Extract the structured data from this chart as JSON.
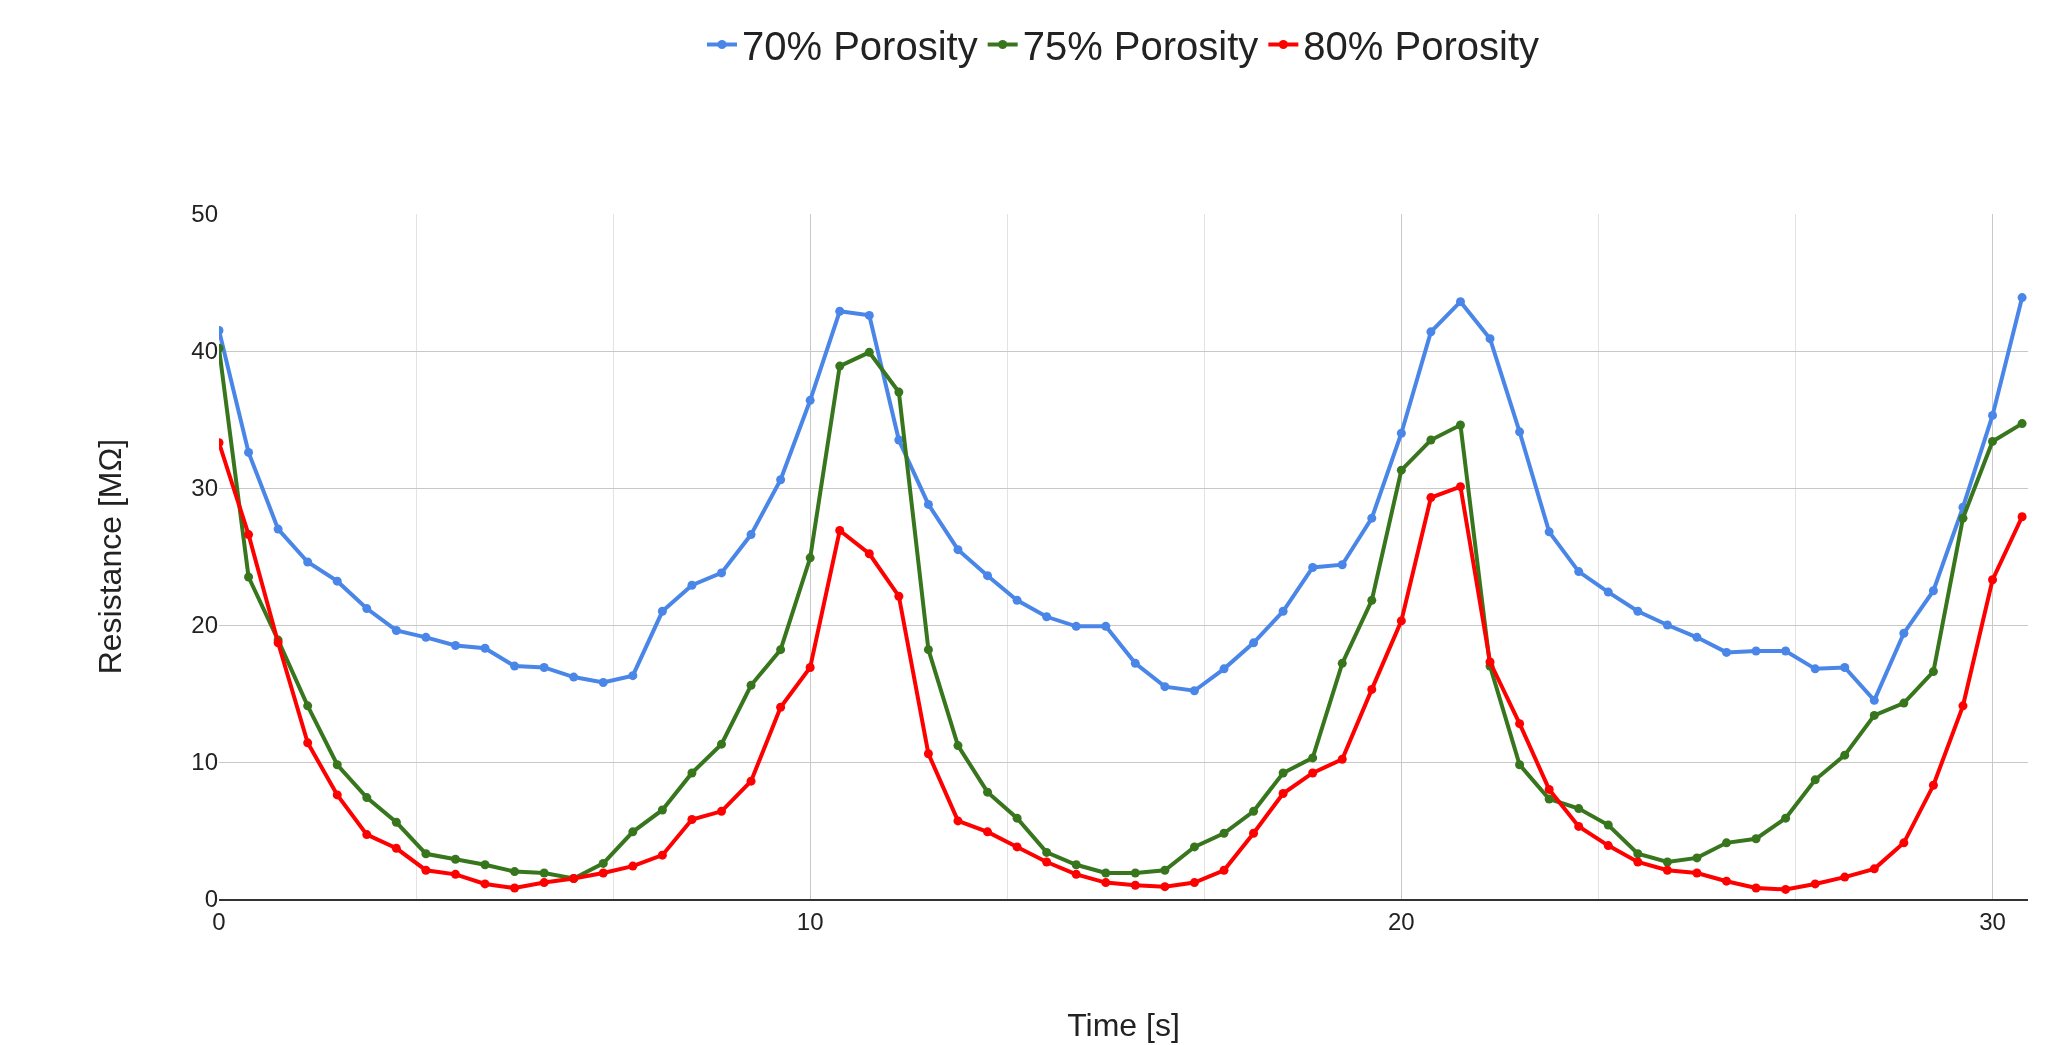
{
  "chart_data": {
    "type": "line",
    "xlabel": "Time [s]",
    "ylabel": "Resistance [MΩ]",
    "x": [
      0,
      0.5,
      1,
      1.5,
      2,
      2.5,
      3,
      3.5,
      4,
      4.5,
      5,
      5.5,
      6,
      6.5,
      7,
      7.5,
      8,
      8.5,
      9,
      9.5,
      10,
      10.5,
      11,
      11.5,
      12,
      12.5,
      13,
      13.5,
      14,
      14.5,
      15,
      15.5,
      16,
      16.5,
      17,
      17.5,
      18,
      18.5,
      19,
      19.5,
      20,
      20.5,
      21,
      21.5,
      22,
      22.5,
      23,
      23.5,
      24,
      24.5,
      25,
      25.5,
      26,
      26.5,
      27,
      27.5,
      28,
      28.5,
      29,
      29.5,
      30,
      30.5
    ],
    "series": [
      {
        "name": "70% Porosity",
        "color": "#4a86e8",
        "values": [
          41.5,
          32.6,
          27,
          24.6,
          23.2,
          21.2,
          19.6,
          19.1,
          18.5,
          18.3,
          17,
          16.9,
          16.2,
          15.8,
          16.3,
          21,
          22.9,
          23.8,
          26.6,
          30.6,
          36.4,
          42.9,
          42.6,
          33.5,
          28.8,
          25.5,
          23.6,
          21.8,
          20.6,
          19.9,
          19.9,
          17.2,
          15.5,
          15.2,
          16.8,
          18.7,
          21,
          24.2,
          24.4,
          27.8,
          34,
          41.4,
          43.6,
          40.9,
          34.1,
          26.8,
          23.9,
          22.4,
          21,
          20,
          19.1,
          18,
          18.1,
          18.1,
          16.8,
          16.9,
          14.5,
          19.4,
          22.5,
          28.6,
          35.3,
          43.9
        ]
      },
      {
        "name": "75% Porosity",
        "color": "#38761d",
        "values": [
          40.2,
          23.5,
          18.9,
          14.1,
          9.8,
          7.4,
          5.6,
          3.3,
          2.9,
          2.5,
          2,
          1.9,
          1.5,
          2.6,
          4.9,
          6.5,
          9.2,
          11.3,
          15.6,
          18.2,
          24.9,
          38.9,
          39.9,
          37,
          18.2,
          11.2,
          7.8,
          5.9,
          3.4,
          2.5,
          1.9,
          1.9,
          2.1,
          3.8,
          4.8,
          6.4,
          9.2,
          10.3,
          17.2,
          21.8,
          31.3,
          33.5,
          34.6,
          17,
          9.8,
          7.3,
          6.6,
          5.4,
          3.3,
          2.7,
          3,
          4.1,
          4.4,
          5.9,
          8.7,
          10.5,
          13.4,
          14.3,
          16.6,
          27.8,
          33.4,
          34.7
        ]
      },
      {
        "name": "80% Porosity",
        "color": "#ff0000",
        "values": [
          33.3,
          26.6,
          18.7,
          11.4,
          7.6,
          4.7,
          3.7,
          2.1,
          1.8,
          1.1,
          0.8,
          1.2,
          1.5,
          1.9,
          2.4,
          3.2,
          5.8,
          6.4,
          8.6,
          14,
          16.9,
          26.9,
          25.2,
          22.1,
          10.6,
          5.7,
          4.9,
          3.8,
          2.7,
          1.8,
          1.2,
          1,
          0.9,
          1.2,
          2.1,
          4.8,
          7.7,
          9.2,
          10.2,
          15.3,
          20.3,
          29.3,
          30.1,
          17.3,
          12.8,
          8,
          5.3,
          3.9,
          2.7,
          2.1,
          1.9,
          1.3,
          0.8,
          0.7,
          1.1,
          1.6,
          2.2,
          4.1,
          8.3,
          14.1,
          23.3,
          27.9
        ]
      }
    ],
    "xlim": [
      0,
      30.6
    ],
    "xticks": [
      0,
      10,
      20,
      30
    ],
    "ylim": [
      0,
      50
    ],
    "yticks": [
      0,
      10,
      20,
      30,
      40,
      50
    ],
    "grid": true,
    "legend": "top",
    "marker": "circle",
    "line_style": "solid"
  }
}
